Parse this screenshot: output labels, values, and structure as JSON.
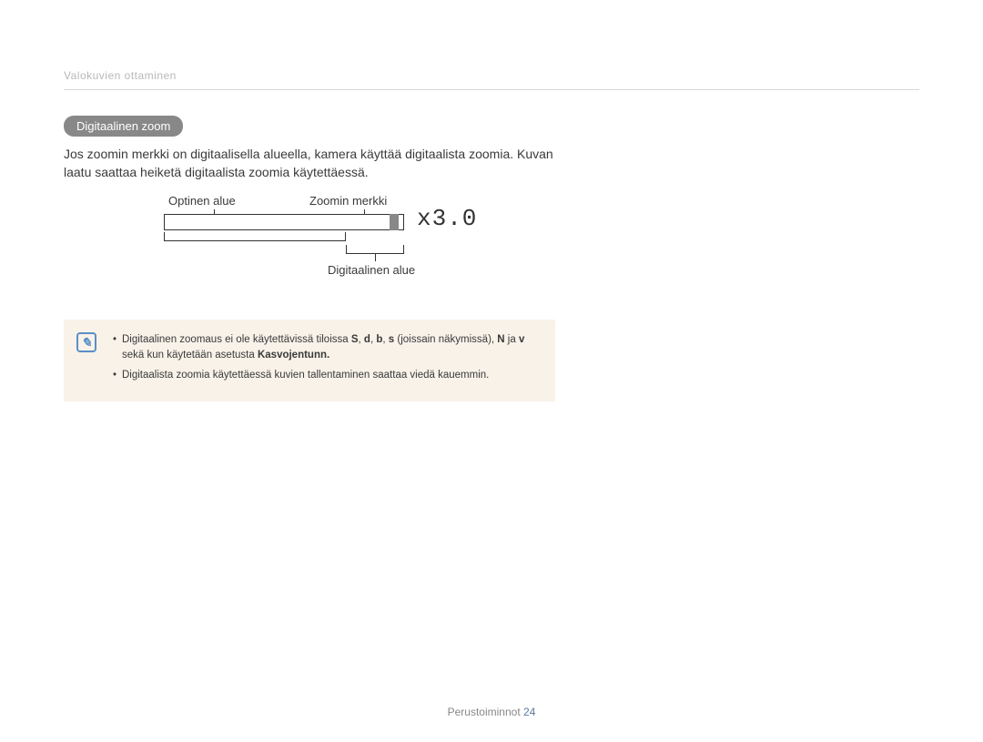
{
  "breadcrumb": "Valokuvien ottaminen",
  "section_title": "Digitaalinen zoom",
  "body_text": "Jos zoomin merkki on digitaalisella alueella, kamera käyttää digitaalista zoomia. Kuvan laatu saattaa heiketä digitaalista zoomia käytettäessä.",
  "diagram": {
    "label_optical": "Optinen alue",
    "label_marker": "Zoomin merkki",
    "label_digital": "Digitaalinen alue",
    "zoom_value": "x3.0",
    "bar_color": "#ffffff",
    "marker_color": "#888888",
    "border_color": "#333333"
  },
  "note": {
    "background": "#f8f2e9",
    "icon_color": "#5a8fc7",
    "bullets": [
      {
        "pre": "Digitaalinen zoomaus ei ole käytettävissä tiloissa ",
        "sym1": "S",
        "mid1": ", ",
        "sym2": "d",
        "mid2": ", ",
        "sym3": "b",
        "mid3": ", ",
        "sym4": "s",
        "mid4": " (joissain näkymissä), ",
        "sym5": "N",
        "mid5": " ja ",
        "sym6": "v",
        "mid6": " sekä kun käytetään asetusta ",
        "bold": "Kasvojentunn.",
        "end": ""
      },
      {
        "text": "Digitaalista zoomia käytettäessä kuvien tallentaminen saattaa viedä kauemmin."
      }
    ]
  },
  "footer": {
    "label": "Perustoiminnot",
    "page": "24"
  }
}
